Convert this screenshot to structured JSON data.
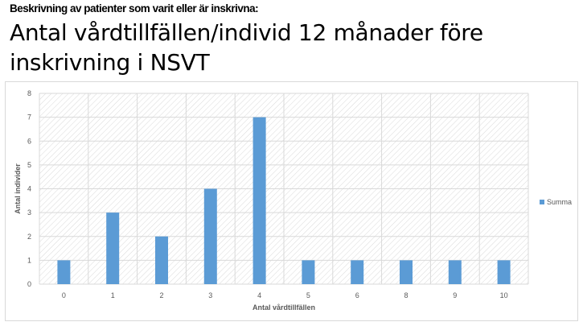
{
  "header": {
    "subtitle": "Beskrivning av patienter som varit eller är inskrivna:",
    "title": "Antal vårdtillfällen/individ 12 månader före inskrivning i NSVT"
  },
  "colors": {
    "bar": "#5b9bd5",
    "grid": "#d9d9d9",
    "hatch": "#d9d9d9",
    "text": "#595959"
  },
  "chart_data": {
    "type": "bar",
    "categories": [
      "0",
      "1",
      "2",
      "3",
      "4",
      "5",
      "6",
      "8",
      "9",
      "10"
    ],
    "series": [
      {
        "name": "Summa",
        "values": [
          1,
          3,
          2,
          4,
          7,
          1,
          1,
          1,
          1,
          1
        ]
      }
    ],
    "xlabel": "Antal vårdtillfällen",
    "ylabel": "Antal individer",
    "ylim": [
      0,
      8
    ],
    "yticks": [
      0,
      1,
      2,
      3,
      4,
      5,
      6,
      7,
      8
    ],
    "grid": true,
    "legend": "right"
  }
}
